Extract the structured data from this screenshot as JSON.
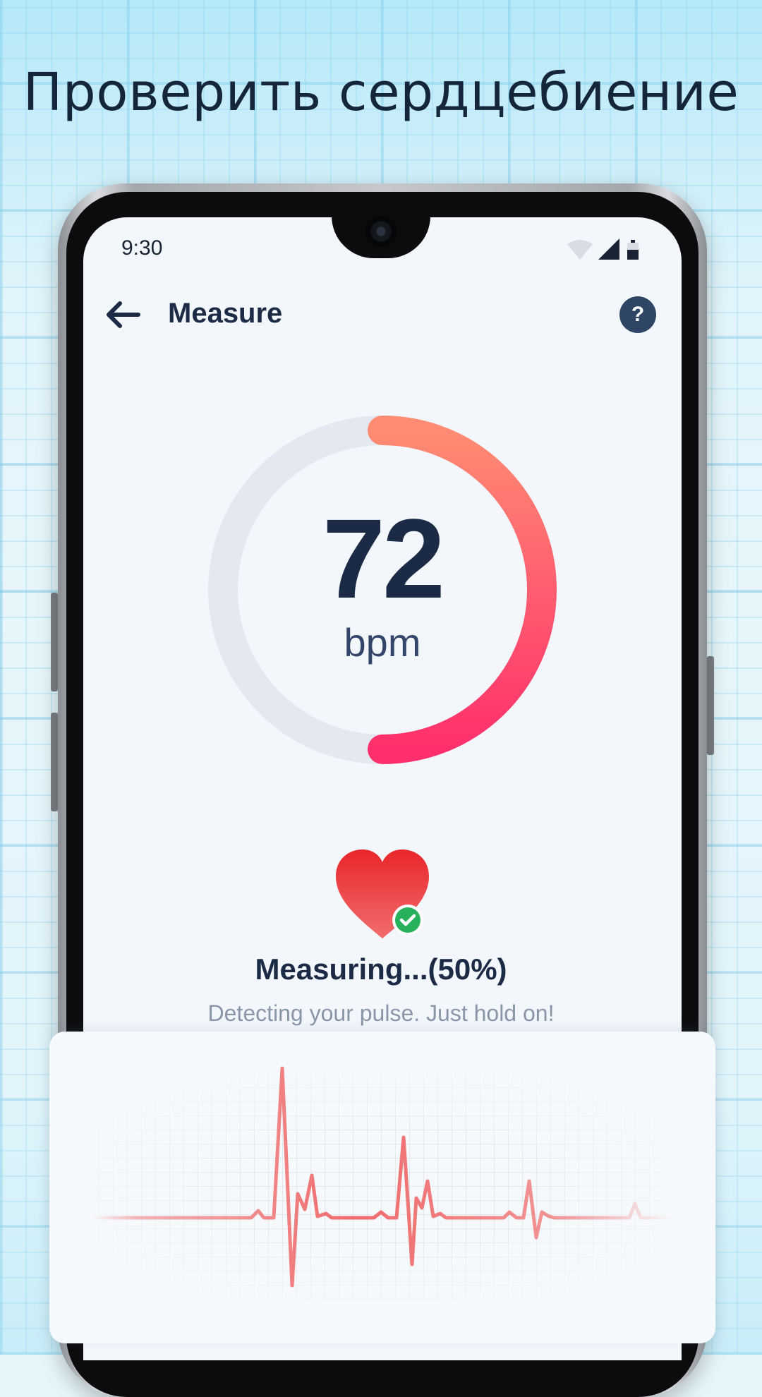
{
  "promo": {
    "headline": "Проверить сердцебиение"
  },
  "status_bar": {
    "time": "9:30",
    "icons": [
      "wifi-icon",
      "signal-icon",
      "battery-icon"
    ]
  },
  "app_bar": {
    "title": "Measure",
    "back_icon": "arrow-left-icon",
    "help_icon": "help-icon",
    "help_glyph": "?"
  },
  "heart_rate": {
    "value": "72",
    "unit": "bpm",
    "progress": 0.5
  },
  "measurement": {
    "status_icon": "heart-check-icon",
    "status": "Measuring...(50%)",
    "hint": "Detecting your pulse. Just hold on!"
  },
  "ecg": {
    "icon": "ecg-waveform"
  },
  "colors": {
    "accent_start": "#ff8c73",
    "accent_end": "#ff2f6b",
    "primary_text": "#1c2b45",
    "ring_track": "#e3e8f1",
    "ecg_line": "#f06a6a"
  }
}
